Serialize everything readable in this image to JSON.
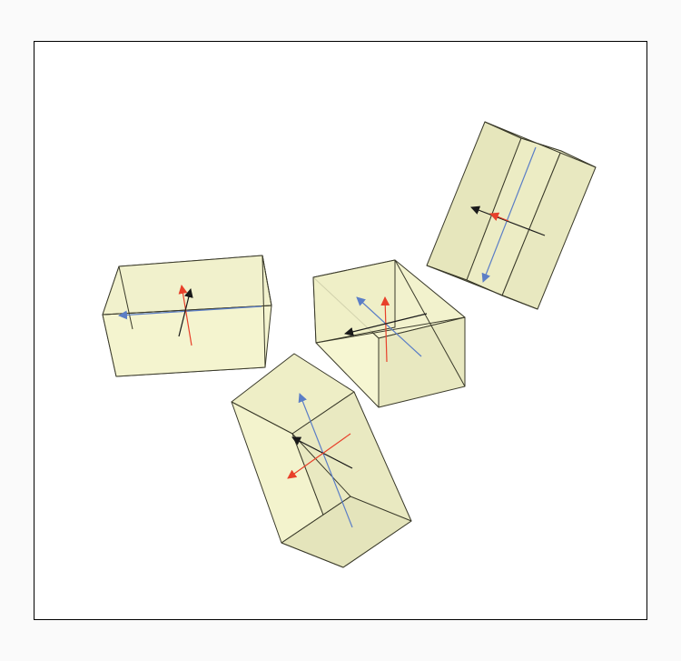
{
  "scene": {
    "colors": {
      "background": "#fafafa",
      "viewport": "#ffffff",
      "frame": "#000000",
      "box_fill_light": "#f6f6d2",
      "box_fill_mid": "#eeeec8",
      "box_fill_dark": "#e3e3bc",
      "box_edge": "#3a3a2a",
      "axis_red": "#e8402a",
      "axis_blue": "#5b7ec6",
      "axis_black": "#1a1a1a"
    },
    "boxes": [
      {
        "name": "box-left",
        "axes": [
          "red-axis-arrow",
          "blue-axis-arrow",
          "black-axis-arrow"
        ]
      },
      {
        "name": "box-center",
        "axes": [
          "red-axis-arrow",
          "blue-axis-arrow",
          "black-axis-arrow"
        ]
      },
      {
        "name": "box-upper-right",
        "axes": [
          "red-axis-arrow",
          "blue-axis-arrow",
          "black-axis-arrow"
        ]
      },
      {
        "name": "box-bottom",
        "axes": [
          "red-axis-arrow",
          "blue-axis-arrow",
          "black-axis-arrow"
        ]
      }
    ]
  }
}
